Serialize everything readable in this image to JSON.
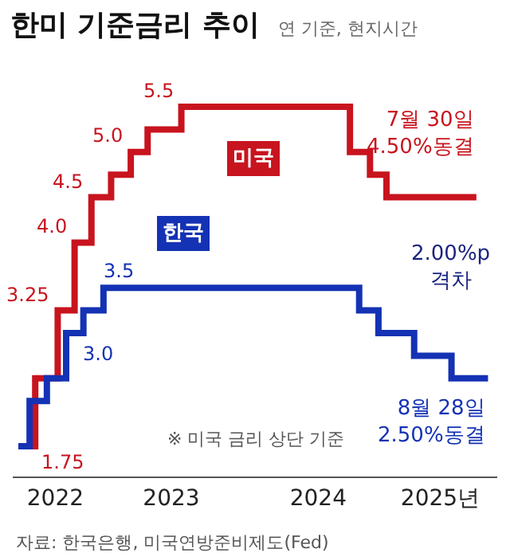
{
  "chart_data": {
    "type": "step",
    "title": "한미 기준금리 추이",
    "subtitle": "연 기준, 현지시간",
    "series": [
      {
        "name": "미국",
        "color": "#c8141e",
        "x": [
          "2022-06-15",
          "2022-07-27",
          "2022-09-21",
          "2022-11-02",
          "2022-12-14",
          "2023-02-01",
          "2023-03-22",
          "2023-05-03",
          "2023-07-26",
          "2024-09-18",
          "2024-11-07",
          "2024-12-18",
          "2025-07-30"
        ],
        "values": [
          1.75,
          2.5,
          3.25,
          4.0,
          4.5,
          4.75,
          5.0,
          5.25,
          5.5,
          5.0,
          4.75,
          4.5,
          4.5
        ],
        "value_labels": [
          "1.75",
          null,
          "3.25",
          "4.0",
          "4.5",
          null,
          "5.0",
          null,
          "5.5",
          null,
          null,
          null,
          null
        ]
      },
      {
        "name": "한국",
        "color": "#1432b4",
        "x": [
          "2022-06-15",
          "2022-07-13",
          "2022-08-25",
          "2022-10-12",
          "2022-11-24",
          "2023-01-13",
          "2024-10-11",
          "2024-11-28",
          "2025-02-25",
          "2025-05-29",
          "2025-08-28"
        ],
        "values": [
          1.75,
          2.25,
          2.5,
          3.0,
          3.25,
          3.5,
          3.25,
          3.0,
          2.75,
          2.5,
          2.5
        ],
        "value_labels": [
          null,
          null,
          null,
          "3.0",
          null,
          "3.5",
          null,
          null,
          null,
          null,
          null
        ]
      }
    ],
    "xlim": [
      "2022-06-01",
      "2025-09-20"
    ],
    "xticks": [
      {
        "value": "2022-09-15",
        "label": "2022"
      },
      {
        "value": "2023-07-01",
        "label": "2023"
      },
      {
        "value": "2024-07-01",
        "label": "2024"
      },
      {
        "value": "2025-05-01",
        "label": "2025년"
      }
    ],
    "tick_labels": "x",
    "legend": false,
    "marker": "none",
    "line_style": "solid",
    "annotations": [
      {
        "text": "7월 30일\n4.50%동결",
        "x": "2025-07-30",
        "y": 4.5
      },
      {
        "text": "8월 28일\n2.50%동결",
        "x": "2025-08-28",
        "y": 2.5
      },
      "2.00%p\n격차",
      "※ 미국 금리 상단 기준",
      "자료: 한국은행, 미국연방준비제도(Fed)"
    ]
  }
}
